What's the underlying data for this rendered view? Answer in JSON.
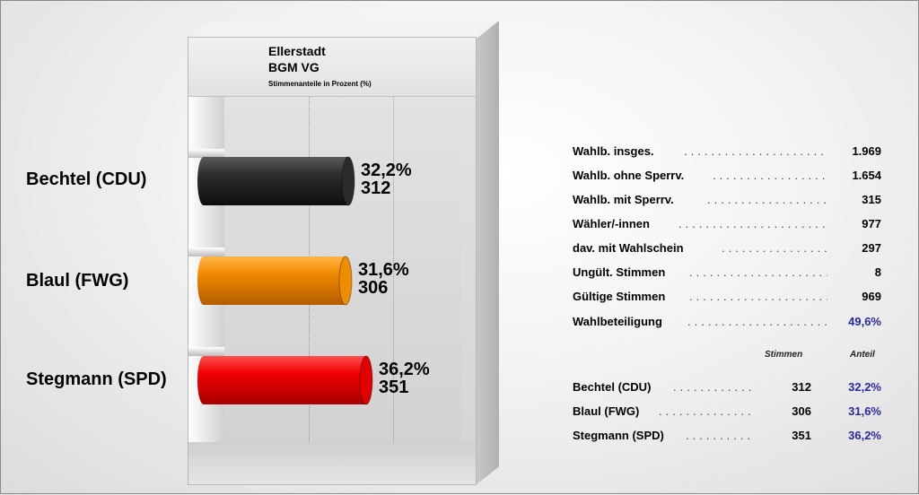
{
  "chart_data": {
    "type": "bar",
    "orientation": "horizontal",
    "title": "Ellerstadt",
    "subtitle": "BGM VG",
    "caption": "Stimmenanteile in Prozent (%)",
    "categories": [
      "Bechtel (CDU)",
      "Blaul (FWG)",
      "Stegmann (SPD)"
    ],
    "values": [
      32.2,
      31.6,
      36.2
    ],
    "value_labels": [
      "32,2%",
      "31,6%",
      "36,2%"
    ],
    "votes": [
      "312",
      "306",
      "351"
    ],
    "colors": [
      "#2b2b2b",
      "#f08c00",
      "#e00000"
    ],
    "xlim": [
      0,
      60
    ],
    "grid": true
  },
  "stats": [
    {
      "label": "Wahlb. insges.",
      "value": "1.969",
      "highlight": false
    },
    {
      "label": "Wahlb. ohne Sperrv.",
      "value": "1.654",
      "highlight": false
    },
    {
      "label": "Wahlb. mit Sperrv.",
      "value": "315",
      "highlight": false
    },
    {
      "label": "Wähler/-innen",
      "value": "977",
      "highlight": false
    },
    {
      "label": "dav. mit Wahlschein",
      "value": "297",
      "highlight": false
    },
    {
      "label": "Ungült. Stimmen",
      "value": "8",
      "highlight": false
    },
    {
      "label": "Gültige Stimmen",
      "value": "969",
      "highlight": false
    },
    {
      "label": "Wahlbeteiligung",
      "value": "49,6%",
      "highlight": true
    }
  ],
  "results_header": {
    "votes": "Stimmen",
    "share": "Anteil"
  },
  "results": [
    {
      "name": "Bechtel (CDU)",
      "votes": "312",
      "share": "32,2%"
    },
    {
      "name": "Blaul (FWG)",
      "votes": "306",
      "share": "31,6%"
    },
    {
      "name": "Stegmann (SPD)",
      "votes": "351",
      "share": "36,2%"
    }
  ],
  "accent_color": "#2a2aa0"
}
